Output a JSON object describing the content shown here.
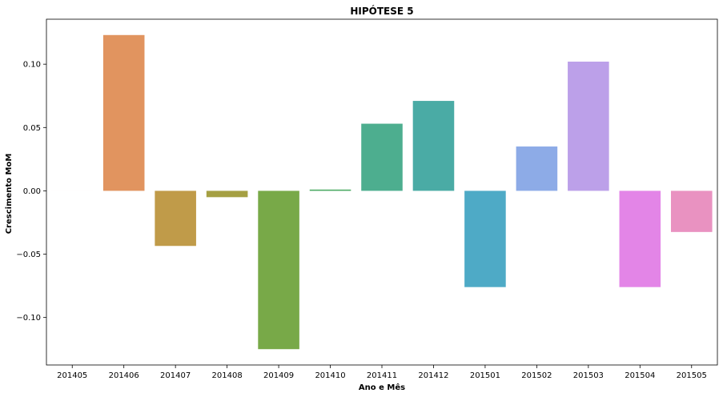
{
  "chart_data": {
    "type": "bar",
    "title": "HIPÓTESE 5",
    "xlabel": "Ano e Mês",
    "ylabel": "Crescimento MoM",
    "categories": [
      "201405",
      "201406",
      "201407",
      "201408",
      "201409",
      "201410",
      "201411",
      "201412",
      "201501",
      "201502",
      "201503",
      "201504",
      "201505"
    ],
    "values": [
      0.0,
      0.123,
      -0.0435,
      -0.005,
      -0.125,
      0.001,
      0.053,
      0.071,
      -0.076,
      0.035,
      0.102,
      -0.076,
      -0.0325
    ],
    "colors": [
      "#e6936f",
      "#e1945f",
      "#c09b49",
      "#a5a043",
      "#78a948",
      "#4baa63",
      "#4dae8f",
      "#4aaba5",
      "#4eaac6",
      "#8dabe7",
      "#bca0e9",
      "#e385e7",
      "#e992c1"
    ],
    "yticks": [
      -0.1,
      -0.05,
      0.0,
      0.05,
      0.1
    ],
    "ytick_labels": [
      "−0.10",
      "−0.05",
      "0.00",
      "0.05",
      "0.10"
    ],
    "ylim": [
      -0.1375,
      0.1355
    ],
    "grid": false,
    "legend": "none"
  }
}
